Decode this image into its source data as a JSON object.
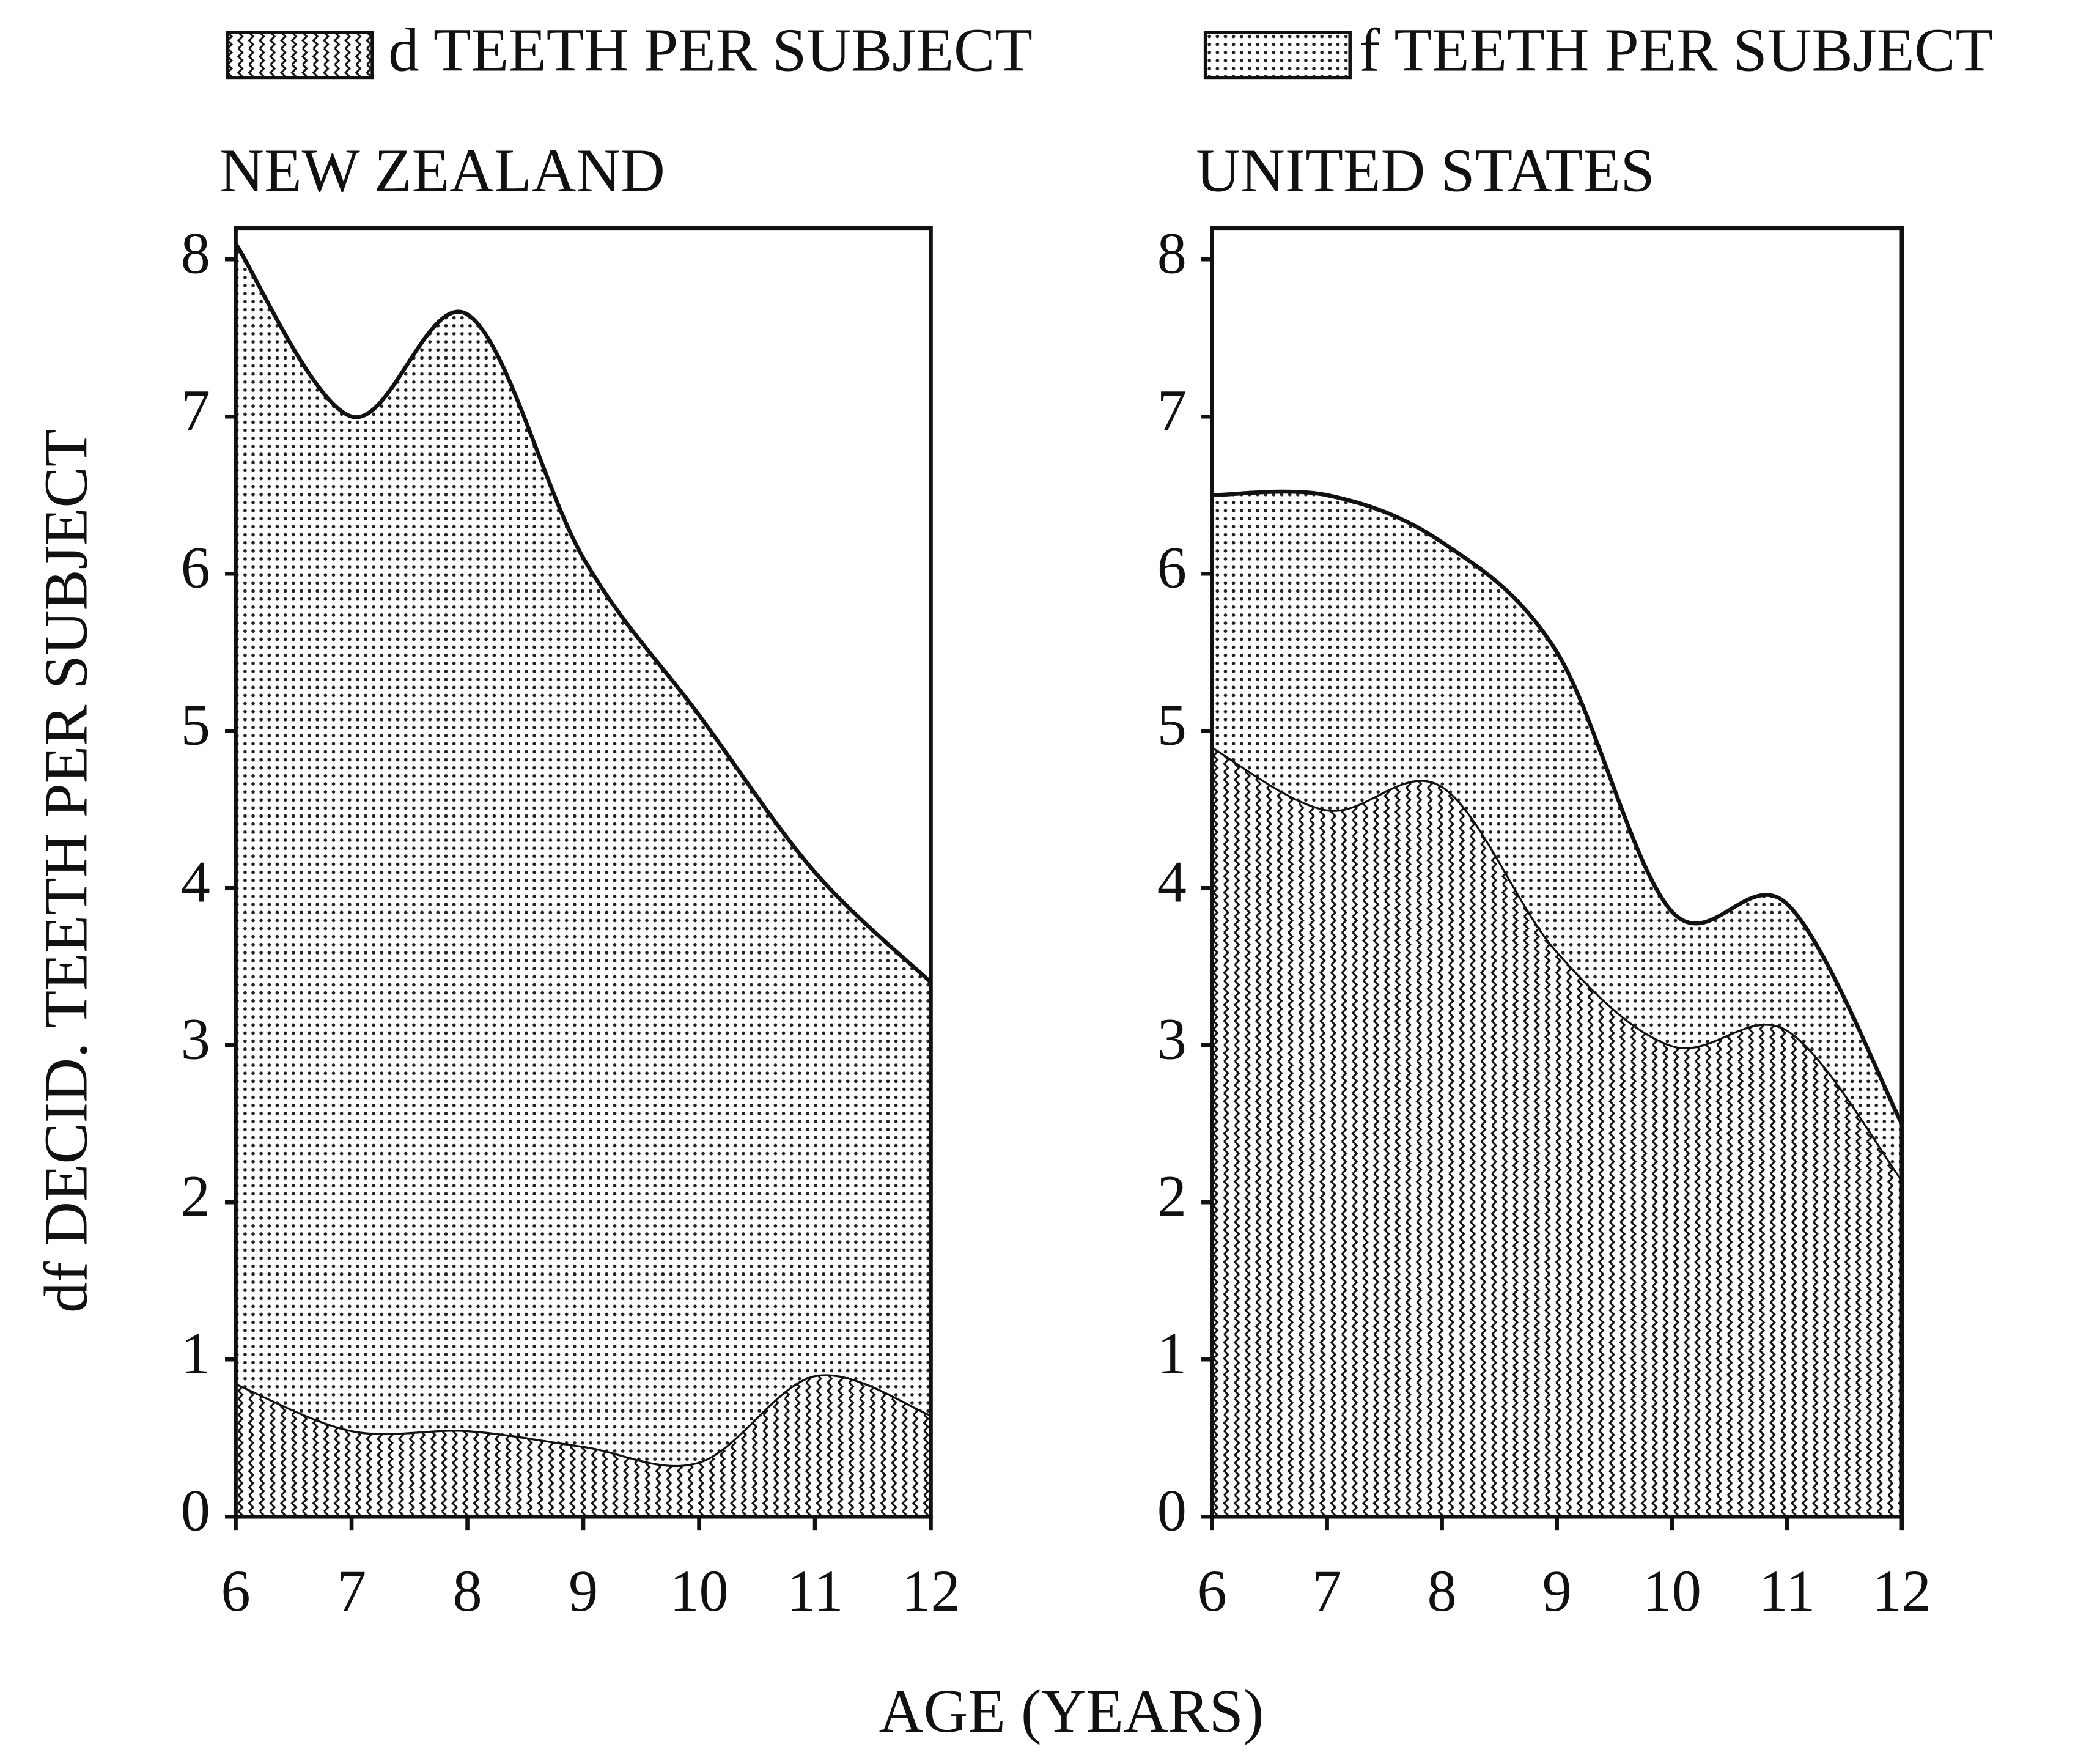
{
  "legend": [
    "d TEETH PER SUBJECT",
    "f TEETH PER SUBJECT"
  ],
  "ylabel": "df DECID. TEETH PER SUBJECT",
  "xlabel": "AGE (YEARS)",
  "chart_data": [
    {
      "type": "area",
      "title": "NEW ZEALAND",
      "stacked": true,
      "x": [
        6,
        7,
        8,
        9,
        10,
        11,
        12
      ],
      "series": [
        {
          "pattern": "wavy",
          "color": "#111111",
          "values": [
            0.85,
            0.55,
            0.55,
            0.45,
            0.35,
            0.9,
            0.65
          ]
        },
        {
          "pattern": "dots",
          "color": "#111111",
          "values": [
            7.25,
            6.45,
            7.1,
            5.65,
            4.75,
            3.2,
            2.75
          ]
        }
      ],
      "xlim": [
        6,
        12
      ],
      "ylim": [
        0,
        8.2
      ],
      "xticks": [
        6,
        7,
        8,
        9,
        10,
        11,
        12
      ],
      "yticks": [
        0,
        1,
        2,
        3,
        4,
        5,
        6,
        7,
        8
      ]
    },
    {
      "type": "area",
      "title": "UNITED STATES",
      "stacked": true,
      "x": [
        6,
        7,
        8,
        9,
        10,
        11,
        12
      ],
      "series": [
        {
          "pattern": "wavy",
          "color": "#111111",
          "values": [
            4.9,
            4.5,
            4.65,
            3.6,
            3.0,
            3.1,
            2.15
          ]
        },
        {
          "pattern": "dots",
          "color": "#111111",
          "values": [
            1.6,
            2.0,
            1.55,
            1.9,
            0.85,
            0.8,
            0.35
          ]
        }
      ],
      "xlim": [
        6,
        12
      ],
      "ylim": [
        0,
        8.2
      ],
      "xticks": [
        6,
        7,
        8,
        9,
        10,
        11,
        12
      ],
      "yticks": [
        0,
        1,
        2,
        3,
        4,
        5,
        6,
        7,
        8
      ]
    }
  ]
}
